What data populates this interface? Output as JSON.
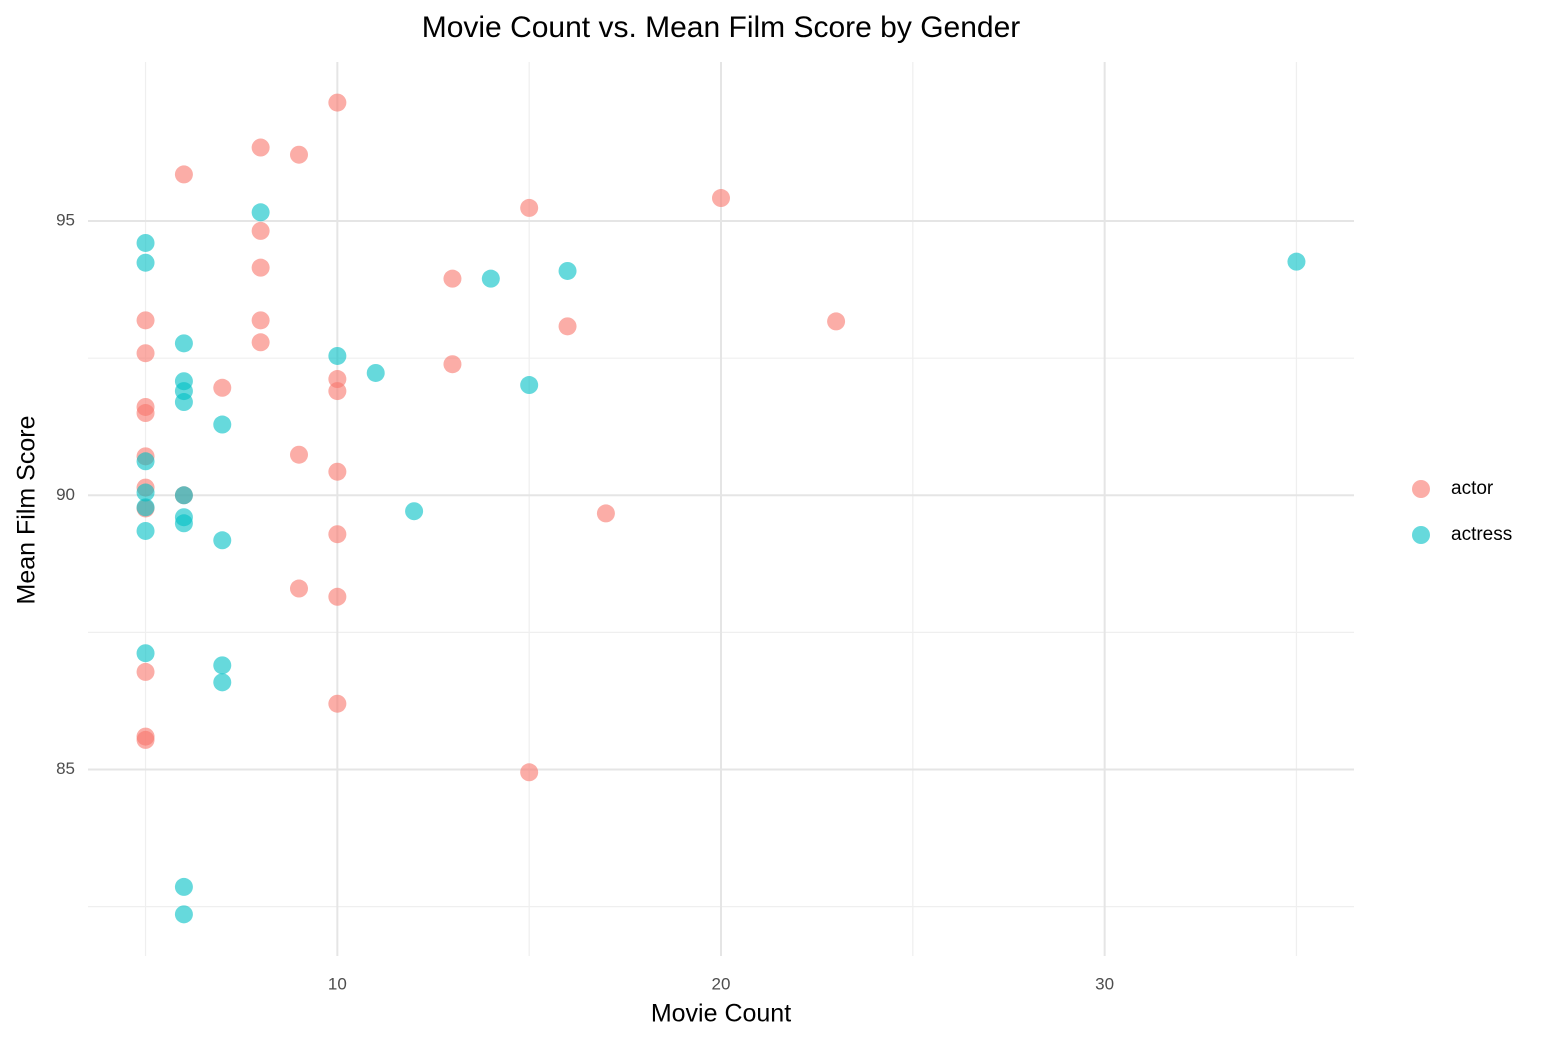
{
  "chart_data": {
    "type": "scatter",
    "title": "Movie Count vs. Mean Film Score by Gender",
    "x_label": "Movie Count",
    "y_label": "Mean Film Score",
    "xlim": [
      3.5,
      36.5
    ],
    "ylim": [
      81.6,
      97.9
    ],
    "xticks": [
      10,
      20,
      30
    ],
    "yticks": [
      85,
      90,
      95
    ],
    "xminor": [
      5,
      15,
      25,
      35
    ],
    "yminor": [
      82.5,
      87.5,
      92.5
    ],
    "grid": true,
    "legend": "right",
    "series": [
      {
        "name": "actor",
        "color": "#F8766D",
        "x": [
          10,
          8,
          9,
          6,
          15,
          20,
          8,
          8,
          13,
          5,
          8,
          23,
          16,
          8,
          5,
          13,
          10,
          7,
          10,
          5,
          5,
          9,
          5,
          10,
          5,
          6,
          5,
          17,
          10,
          9,
          10,
          5,
          10,
          5,
          5,
          15
        ],
        "values": [
          97.16,
          96.34,
          96.21,
          95.85,
          95.24,
          95.42,
          94.82,
          94.15,
          93.95,
          93.19,
          93.19,
          93.17,
          93.08,
          92.79,
          92.59,
          92.39,
          92.12,
          91.96,
          91.9,
          91.61,
          91.5,
          90.74,
          90.71,
          90.43,
          90.14,
          90.0,
          89.76,
          89.67,
          89.29,
          88.3,
          88.15,
          86.78,
          86.2,
          85.6,
          85.54,
          84.95
        ]
      },
      {
        "name": "actress",
        "color": "#00BFC4",
        "x": [
          8,
          5,
          5,
          35,
          16,
          14,
          6,
          10,
          11,
          6,
          15,
          6,
          6,
          7,
          5,
          5,
          6,
          5,
          12,
          6,
          6,
          5,
          7,
          5,
          7,
          7,
          6,
          6
        ],
        "values": [
          95.16,
          94.6,
          94.24,
          94.26,
          94.09,
          93.95,
          92.77,
          92.54,
          92.23,
          92.08,
          92.01,
          91.9,
          91.7,
          91.29,
          90.62,
          90.05,
          90.0,
          89.78,
          89.71,
          89.6,
          89.49,
          89.35,
          89.18,
          87.12,
          86.9,
          86.59,
          82.86,
          82.36
        ]
      }
    ]
  }
}
